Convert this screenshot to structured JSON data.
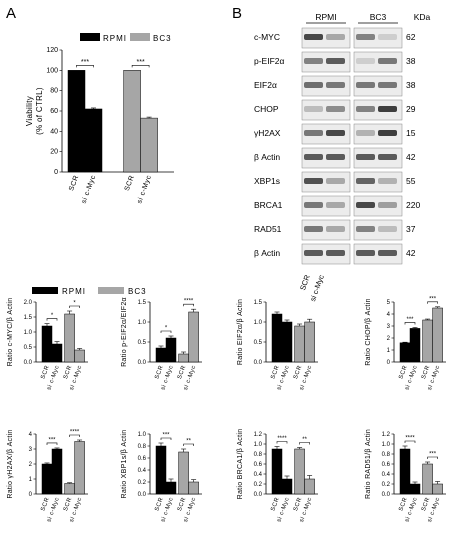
{
  "panels": {
    "a": "A",
    "b": "B"
  },
  "colors": {
    "rpmi": "#000000",
    "bc3": "#a6a6a6",
    "blot_bg": "#ececec",
    "band": "#2b2b2b"
  },
  "legend": {
    "rpmi": "RPMI",
    "bc3": "BC3"
  },
  "conditions": [
    "SCR",
    "si c-Myc"
  ],
  "blot": {
    "headers": [
      "RPMI",
      "BC3",
      "KDa"
    ],
    "lanes": [
      "SCR",
      "si c-Myc"
    ],
    "rows": [
      {
        "label": "c-MYC",
        "kda": "62",
        "int": [
          0.85,
          0.35,
          0.55,
          0.15
        ]
      },
      {
        "label": "p-EIF2α",
        "kda": "38",
        "int": [
          0.55,
          0.75,
          0.15,
          0.6
        ]
      },
      {
        "label": "EIF2α",
        "kda": "38",
        "int": [
          0.65,
          0.6,
          0.6,
          0.6
        ]
      },
      {
        "label": "CHOP",
        "kda": "29",
        "int": [
          0.25,
          0.5,
          0.55,
          0.9
        ]
      },
      {
        "label": "γH2AX",
        "kda": "15",
        "int": [
          0.6,
          0.85,
          0.3,
          0.9
        ]
      },
      {
        "label": "β Actin",
        "kda": "42",
        "int": [
          0.75,
          0.75,
          0.75,
          0.75
        ]
      },
      {
        "label": "XBP1s",
        "kda": "55",
        "int": [
          0.8,
          0.35,
          0.7,
          0.3
        ]
      },
      {
        "label": "BRCA1",
        "kda": "220",
        "int": [
          0.6,
          0.35,
          0.85,
          0.4
        ]
      },
      {
        "label": "RAD51",
        "kda": "37",
        "int": [
          0.6,
          0.35,
          0.55,
          0.25
        ]
      },
      {
        "label": "β Actin",
        "kda": "42",
        "int": [
          0.75,
          0.75,
          0.75,
          0.75
        ]
      }
    ]
  },
  "chart_data": [
    {
      "type": "bar",
      "id": "viability",
      "categories": [
        "RPMI SCR",
        "RPMI si c-Myc",
        "BC3 SCR",
        "BC3 si c-Myc"
      ],
      "values": [
        100,
        62,
        100,
        53
      ],
      "errors": [
        0,
        1,
        0,
        1
      ],
      "ylabel": "Viability\n(% of CTRL)",
      "ylim": [
        0,
        120
      ],
      "yticks": [
        "0",
        "20",
        "40",
        "60",
        "80",
        "100",
        "120"
      ],
      "significance": [
        "***",
        "***"
      ],
      "legend": [
        "RPMI",
        "BC3"
      ]
    },
    {
      "type": "bar",
      "id": "cmyc",
      "categories": [
        "RPMI SCR",
        "RPMI si c-Myc",
        "BC3 SCR",
        "BC3 si c-Myc"
      ],
      "values": [
        1.2,
        0.6,
        1.6,
        0.4
      ],
      "errors": [
        0.08,
        0.08,
        0.1,
        0.05
      ],
      "ylabel": "Ratio c-MYC/β Actin",
      "ylim": [
        0,
        2.0
      ],
      "yticks": [
        "0.0",
        "0.5",
        "1.0",
        "1.5",
        "2.0"
      ],
      "significance": [
        "*",
        "*"
      ]
    },
    {
      "type": "bar",
      "id": "peif2a",
      "categories": [
        "RPMI SCR",
        "RPMI si c-Myc",
        "BC3 SCR",
        "BC3 si c-Myc"
      ],
      "values": [
        0.35,
        0.6,
        0.2,
        1.25
      ],
      "errors": [
        0.05,
        0.05,
        0.05,
        0.07
      ],
      "ylabel": "Ratio p-EIF2α/EIF2α",
      "ylim": [
        0,
        1.5
      ],
      "yticks": [
        "0.0",
        "0.5",
        "1.0",
        "1.5"
      ],
      "significance": [
        "*",
        "****"
      ]
    },
    {
      "type": "bar",
      "id": "eif2a",
      "categories": [
        "RPMI SCR",
        "RPMI si c-Myc",
        "BC3 SCR",
        "BC3 si c-Myc"
      ],
      "values": [
        1.2,
        1.0,
        0.9,
        1.0
      ],
      "errors": [
        0.05,
        0.05,
        0.05,
        0.07
      ],
      "ylabel": "Ratio EIF2α/β Actin",
      "ylim": [
        0,
        1.5
      ],
      "yticks": [
        "0.0",
        "0.5",
        "1.0",
        "1.5"
      ],
      "significance": []
    },
    {
      "type": "bar",
      "id": "chop",
      "categories": [
        "RPMI SCR",
        "RPMI si c-Myc",
        "BC3 SCR",
        "BC3 si c-Myc"
      ],
      "values": [
        1.6,
        2.8,
        3.5,
        4.5
      ],
      "errors": [
        0.05,
        0.08,
        0.08,
        0.1
      ],
      "ylabel": "Ratio CHOP/β Actin",
      "ylim": [
        0,
        5
      ],
      "yticks": [
        "0",
        "1",
        "2",
        "3",
        "4",
        "5"
      ],
      "significance": [
        "***",
        "***"
      ]
    },
    {
      "type": "bar",
      "id": "h2ax",
      "categories": [
        "RPMI SCR",
        "RPMI si c-Myc",
        "BC3 SCR",
        "BC3 si c-Myc"
      ],
      "values": [
        2.0,
        3.0,
        0.7,
        3.5
      ],
      "errors": [
        0.07,
        0.07,
        0.05,
        0.1
      ],
      "ylabel": "Ratio γH2AX/β Actin",
      "ylim": [
        0,
        4
      ],
      "yticks": [
        "0",
        "1",
        "2",
        "3",
        "4"
      ],
      "significance": [
        "***",
        "****"
      ]
    },
    {
      "type": "bar",
      "id": "xbp1s",
      "categories": [
        "RPMI SCR",
        "RPMI si c-Myc",
        "BC3 SCR",
        "BC3 si c-Myc"
      ],
      "values": [
        0.8,
        0.2,
        0.7,
        0.2
      ],
      "errors": [
        0.05,
        0.05,
        0.05,
        0.04
      ],
      "ylabel": "Ratio XBP1s/β Actin",
      "ylim": [
        0,
        1.0
      ],
      "yticks": [
        "0.0",
        "0.2",
        "0.4",
        "0.6",
        "0.8",
        "1.0"
      ],
      "significance": [
        "***",
        "**"
      ]
    },
    {
      "type": "bar",
      "id": "brca1",
      "categories": [
        "RPMI SCR",
        "RPMI si c-Myc",
        "BC3 SCR",
        "BC3 si c-Myc"
      ],
      "values": [
        0.9,
        0.3,
        0.9,
        0.3
      ],
      "errors": [
        0.05,
        0.06,
        0.03,
        0.07
      ],
      "ylabel": "Ratio BRCA1/β Actin",
      "ylim": [
        0,
        1.2
      ],
      "yticks": [
        "0.0",
        "0.2",
        "0.4",
        "0.6",
        "0.8",
        "1.0",
        "1.2"
      ],
      "significance": [
        "****",
        "**"
      ]
    },
    {
      "type": "bar",
      "id": "rad51",
      "categories": [
        "RPMI SCR",
        "RPMI si c-Myc",
        "BC3 SCR",
        "BC3 si c-Myc"
      ],
      "values": [
        0.9,
        0.2,
        0.6,
        0.2
      ],
      "errors": [
        0.06,
        0.04,
        0.04,
        0.05
      ],
      "ylabel": "Ratio RAD51/β Actin",
      "ylim": [
        0,
        1.2
      ],
      "yticks": [
        "0.0",
        "0.2",
        "0.4",
        "0.6",
        "0.8",
        "1.0",
        "1.2"
      ],
      "significance": [
        "****",
        "***"
      ]
    }
  ]
}
